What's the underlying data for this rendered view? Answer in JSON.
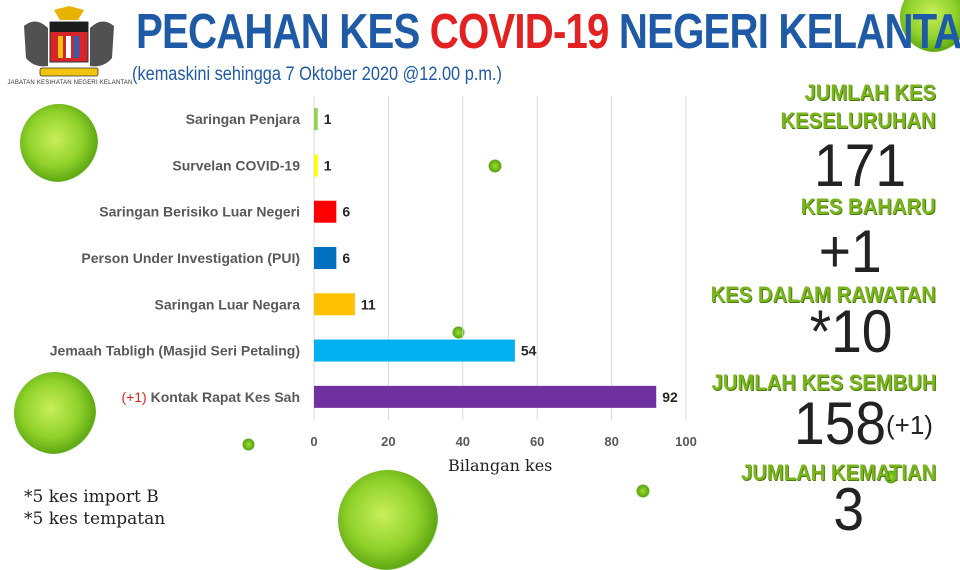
{
  "header": {
    "title_part1": "PECAHAN KES ",
    "title_highlight": "COVID-19",
    "title_part2": " NEGERI KELANTAN",
    "subtitle": "(kemaskini sehingga 7 Oktober 2020 @12.00 p.m.)",
    "logo_caption": "JABATAN KESIHATAN NEGERI KELANTAN"
  },
  "colors": {
    "title_blue": "#1f5aa6",
    "title_red": "#e32120",
    "stat_green": "#7ab51d"
  },
  "chart_data": {
    "type": "bar",
    "orientation": "horizontal",
    "categories": [
      "Saringan Penjara",
      "Survelan COVID-19",
      "Saringan Berisiko Luar Negeri",
      "Person Under Investigation (PUI)",
      "Saringan Luar Negara",
      "Jemaah Tabligh (Masjid Seri Petaling)",
      "Kontak Rapat Kes Sah"
    ],
    "category_prefix": [
      "",
      "",
      "",
      "",
      "",
      "",
      "(+1)"
    ],
    "values": [
      1,
      1,
      6,
      6,
      11,
      54,
      92
    ],
    "bar_colors": [
      "#92d050",
      "#ffff00",
      "#ff0000",
      "#0070c0",
      "#ffc000",
      "#00b0f0",
      "#7030a0"
    ],
    "xlabel": "Bilangan kes",
    "xlim": [
      0,
      100
    ],
    "xticks": [
      0,
      20,
      40,
      60,
      80,
      100
    ],
    "grid": true
  },
  "notes": [
    "*5 kes import B",
    "*5 kes tempatan"
  ],
  "stats": {
    "total_label_1": "JUMLAH KES",
    "total_label_2": "KESELURUHAN",
    "total_value": "171",
    "new_label": "KES BAHARU",
    "new_value": "+1",
    "treatment_label": "KES DALAM RAWATAN",
    "treatment_value": "*10",
    "recovered_label": "JUMLAH KES SEMBUH",
    "recovered_value": "158",
    "recovered_delta": "(+1)",
    "deaths_label": "JUMLAH KEMATIAN",
    "deaths_value": "3"
  }
}
